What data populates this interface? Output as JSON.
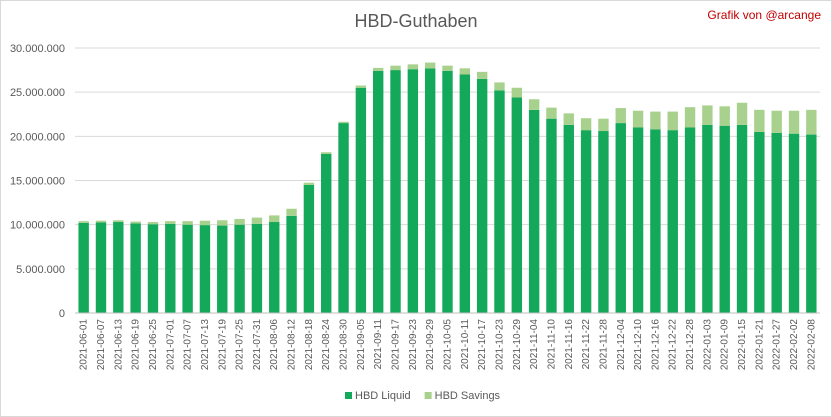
{
  "chart_data": {
    "type": "bar",
    "stacked": true,
    "title": "HBD-Guthaben",
    "credit": "Grafik von @arcange",
    "ylim": [
      0,
      30000000
    ],
    "y_ticks": [
      "0",
      "5.000.000",
      "10.000.000",
      "15.000.000",
      "20.000.000",
      "25.000.000",
      "30.000.000"
    ],
    "y_tick_values": [
      0,
      5000000,
      10000000,
      15000000,
      20000000,
      25000000,
      30000000
    ],
    "grid": "horizontal",
    "legend_position": "bottom",
    "x_tick_labels": [
      "2021-06-01",
      "2021-06-07",
      "2021-06-13",
      "2021-06-19",
      "2021-06-25",
      "2021-07-01",
      "2021-07-07",
      "2021-07-13",
      "2021-07-19",
      "2021-07-25",
      "2021-07-31",
      "2021-08-06",
      "2021-08-12",
      "2021-08-18",
      "2021-08-24",
      "2021-08-30",
      "2021-09-05",
      "2021-09-11",
      "2021-09-17",
      "2021-09-23",
      "2021-09-29",
      "2021-10-05",
      "2021-10-11",
      "2021-10-17",
      "2021-10-23",
      "2021-10-29",
      "2021-11-04",
      "2021-11-10",
      "2021-11-16",
      "2021-11-22",
      "2021-11-28",
      "2021-12-04",
      "2021-12-10",
      "2021-12-16",
      "2021-12-22",
      "2021-12-28",
      "2022-01-03",
      "2022-01-09",
      "2022-01-15",
      "2022-01-21",
      "2022-01-27",
      "2022-02-02",
      "2022-02-08"
    ],
    "series": [
      {
        "name": "HBD Liquid",
        "color": "#13a85a",
        "values": [
          10200000,
          10250000,
          10300000,
          10150000,
          10050000,
          10100000,
          10000000,
          9950000,
          9900000,
          10000000,
          10100000,
          10300000,
          11000000,
          14500000,
          18000000,
          21500000,
          25500000,
          27400000,
          27500000,
          27600000,
          27700000,
          27400000,
          27000000,
          26500000,
          25200000,
          24400000,
          23000000,
          22000000,
          21300000,
          20700000,
          20600000,
          21500000,
          21000000,
          20800000,
          20700000,
          21000000,
          21300000,
          21200000,
          21300000,
          20500000,
          20400000,
          20300000,
          20200000
        ]
      },
      {
        "name": "HBD Savings",
        "color": "#a9d18e",
        "values": [
          200000,
          200000,
          200000,
          200000,
          250000,
          300000,
          400000,
          500000,
          600000,
          650000,
          700000,
          750000,
          800000,
          250000,
          200000,
          150000,
          250000,
          350000,
          500000,
          550000,
          650000,
          600000,
          700000,
          800000,
          900000,
          1100000,
          1200000,
          1250000,
          1300000,
          1350000,
          1400000,
          1700000,
          1900000,
          2000000,
          2100000,
          2300000,
          2200000,
          2200000,
          2500000,
          2500000,
          2500000,
          2600000,
          2800000
        ]
      }
    ]
  }
}
